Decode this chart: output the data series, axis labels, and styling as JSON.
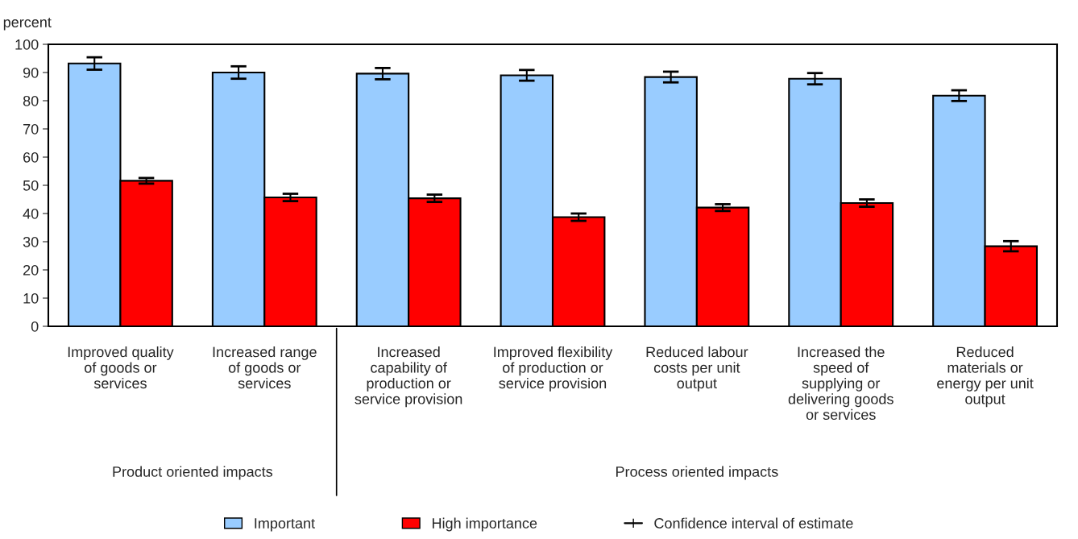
{
  "chart_data": {
    "type": "bar",
    "ylabel": "percent",
    "categories": [
      "Improved quality\nof goods or\nservices",
      "Increased range\nof goods or\nservices",
      "Increased\ncapability of\nproduction or\nservice provision",
      "Improved flexibility\nof production or\nservice provision",
      "Reduced labour\ncosts per unit\noutput",
      "Increased the\nspeed of\nsupplying or\ndelivering goods\nor services",
      "Reduced\nmaterials or\nenergy per unit\noutput"
    ],
    "series": [
      {
        "name": "Important",
        "color": "#99ccff",
        "values": [
          93.2,
          90.0,
          89.6,
          89.0,
          88.4,
          87.8,
          81.8
        ],
        "errors": [
          2.2,
          2.2,
          2.0,
          1.9,
          1.9,
          2.0,
          1.9
        ]
      },
      {
        "name": "High importance",
        "color": "#ff0000",
        "values": [
          51.6,
          45.7,
          45.4,
          38.7,
          42.1,
          43.7,
          28.4
        ],
        "errors": [
          1.0,
          1.3,
          1.3,
          1.3,
          1.2,
          1.3,
          1.8
        ]
      }
    ],
    "ylim": [
      0,
      100
    ],
    "yticks": [
      0,
      10,
      20,
      30,
      40,
      50,
      60,
      70,
      80,
      90,
      100
    ],
    "annotations": [
      "Product oriented impacts",
      "Process oriented impacts",
      "Confidence interval of estimate"
    ],
    "grid": false,
    "legend": "bottom"
  }
}
